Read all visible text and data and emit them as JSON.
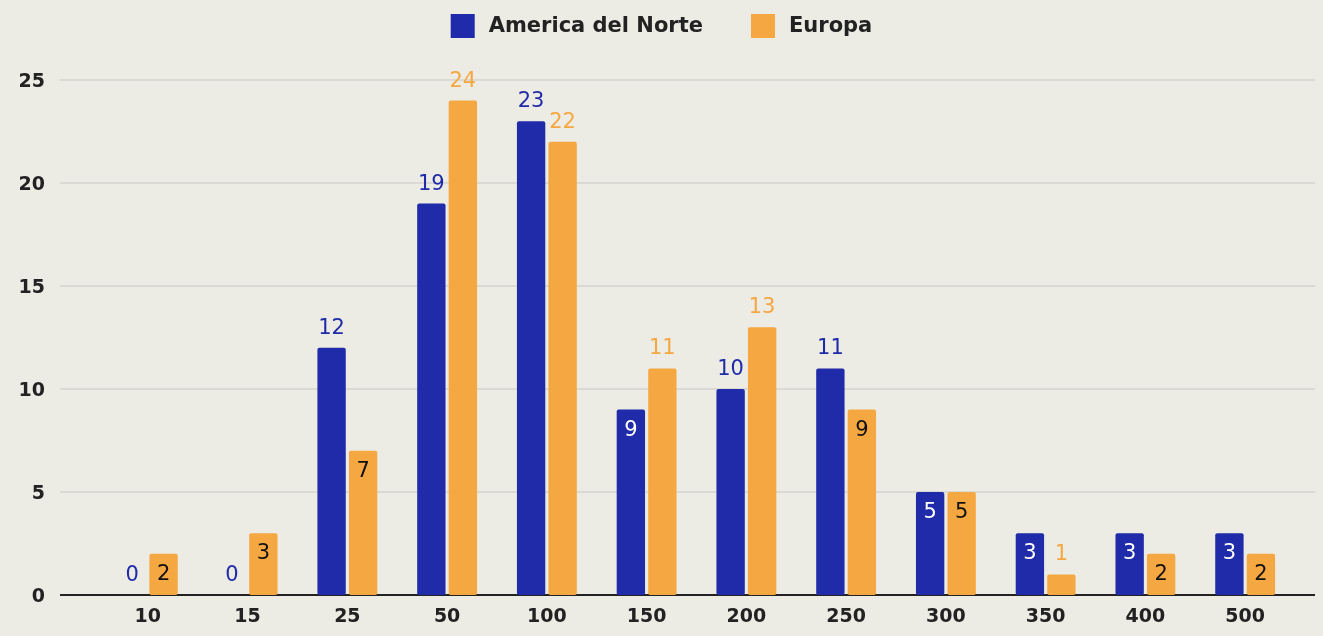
{
  "chart_data": {
    "type": "bar",
    "categories": [
      "10",
      "15",
      "25",
      "50",
      "100",
      "150",
      "200",
      "250",
      "300",
      "350",
      "400",
      "500"
    ],
    "series": [
      {
        "name": "America del Norte",
        "color": "#1f2ba8",
        "values": [
          0,
          0,
          12,
          19,
          23,
          9,
          10,
          11,
          5,
          3,
          3,
          3
        ]
      },
      {
        "name": "Europa",
        "color": "#f5a742",
        "values": [
          2,
          3,
          7,
          24,
          22,
          11,
          13,
          9,
          5,
          1,
          2,
          2
        ]
      }
    ],
    "ylim": [
      0,
      25
    ],
    "yticks": [
      0,
      5,
      10,
      15,
      20,
      25
    ],
    "grid": "y",
    "legend": "top",
    "data_labels": true
  }
}
